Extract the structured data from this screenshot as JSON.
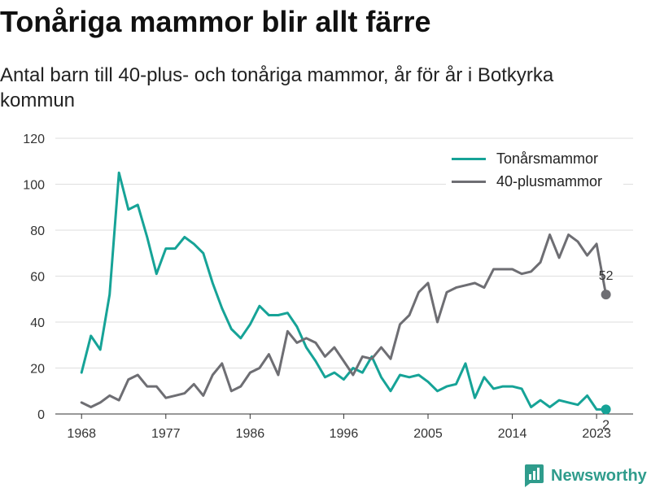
{
  "chart_data": {
    "type": "line",
    "title": "Tonåriga mammor blir allt färre",
    "subtitle": "Antal barn till 40-plus- och tonåriga mammor, år för år i Botkyrka kommun",
    "xlabel": "",
    "ylabel": "",
    "x": [
      1968,
      1969,
      1970,
      1971,
      1972,
      1973,
      1974,
      1975,
      1976,
      1977,
      1978,
      1979,
      1980,
      1981,
      1982,
      1983,
      1984,
      1985,
      1986,
      1987,
      1988,
      1989,
      1990,
      1991,
      1992,
      1993,
      1994,
      1995,
      1996,
      1997,
      1998,
      1999,
      2000,
      2001,
      2002,
      2003,
      2004,
      2005,
      2006,
      2007,
      2008,
      2009,
      2010,
      2011,
      2012,
      2013,
      2014,
      2015,
      2016,
      2017,
      2018,
      2019,
      2020,
      2021,
      2022,
      2023,
      2024
    ],
    "xlim": [
      1965.2,
      2026.9
    ],
    "ylim": [
      0,
      120
    ],
    "xticks": [
      1968,
      1977,
      1986,
      1996,
      2005,
      2014,
      2023
    ],
    "yticks": [
      0,
      20,
      40,
      60,
      80,
      100,
      120
    ],
    "grid": "horizontal",
    "legend": "top-right",
    "series": [
      {
        "name": "Tonårsmammor",
        "color": "#16a397",
        "end_label": "2",
        "values": [
          18,
          34,
          28,
          52,
          105,
          89,
          91,
          77,
          61,
          72,
          72,
          77,
          74,
          70,
          57,
          46,
          37,
          33,
          39,
          47,
          43,
          43,
          44,
          38,
          29,
          23,
          16,
          18,
          15,
          20,
          18,
          25,
          16,
          10,
          17,
          16,
          17,
          14,
          10,
          12,
          13,
          22,
          7,
          16,
          11,
          12,
          12,
          11,
          3,
          6,
          3,
          6,
          5,
          4,
          8,
          2,
          2
        ]
      },
      {
        "name": "40-plusmammor",
        "color": "#6e6e73",
        "end_label": "52",
        "values": [
          5,
          3,
          5,
          8,
          6,
          15,
          17,
          12,
          12,
          7,
          8,
          9,
          13,
          8,
          17,
          22,
          10,
          12,
          18,
          20,
          26,
          17,
          36,
          31,
          33,
          31,
          25,
          29,
          23,
          17,
          25,
          24,
          29,
          24,
          39,
          43,
          53,
          57,
          40,
          53,
          55,
          56,
          57,
          55,
          63,
          63,
          63,
          61,
          62,
          66,
          78,
          68,
          78,
          75,
          69,
          74,
          52
        ]
      }
    ]
  },
  "brand": {
    "name": "Newsworthy",
    "icon": "newsworthy-bar-chart-icon",
    "color": "#2f9c8c"
  }
}
